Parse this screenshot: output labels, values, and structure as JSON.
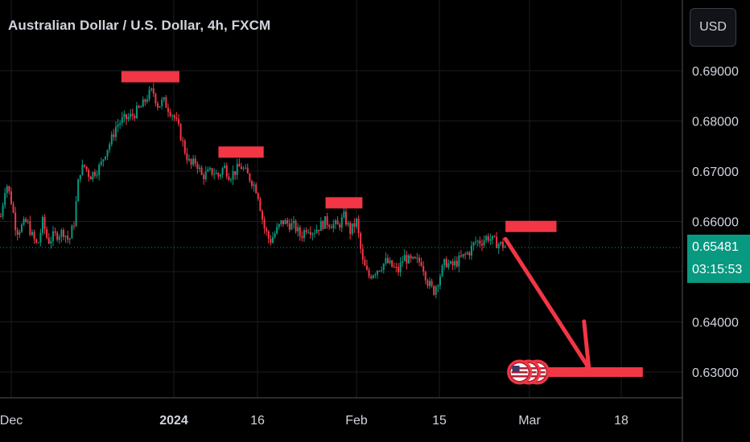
{
  "header": {
    "title": "Australian Dollar / U.S. Dollar, 4h, FXCM"
  },
  "currency_button": {
    "label": "USD"
  },
  "current_price": {
    "value": "0.65481",
    "countdown": "03:15:53",
    "color": "#089981"
  },
  "colors": {
    "background": "#000000",
    "up": "#089981",
    "down": "#f23645",
    "annotation": "#f23645",
    "text": "#d1d4dc",
    "grid": "#1a1c22"
  },
  "chart_data": {
    "type": "candlestick",
    "title": "Australian Dollar / U.S. Dollar, 4h, FXCM",
    "y_ticks": [
      "0.69000",
      "0.68000",
      "0.67000",
      "0.66000",
      "0.64000",
      "0.63000"
    ],
    "x_ticks": [
      "Dec",
      "2024",
      "16",
      "Feb",
      "15",
      "Mar",
      "18"
    ],
    "ylim": [
      0.6255,
      0.7
    ],
    "x_dates": [
      "2023-12-01",
      "2024-01-01",
      "2024-01-16",
      "2024-02-01",
      "2024-02-15",
      "2024-03-01",
      "2024-03-18"
    ],
    "close_path": [
      [
        "2023-11-29",
        0.661
      ],
      [
        "2023-11-30",
        0.668
      ],
      [
        "2023-12-01",
        0.664
      ],
      [
        "2023-12-02",
        0.658
      ],
      [
        "2023-12-04",
        0.66
      ],
      [
        "2023-12-05",
        0.657
      ],
      [
        "2023-12-06",
        0.655
      ],
      [
        "2023-12-07",
        0.66
      ],
      [
        "2023-12-08",
        0.656
      ],
      [
        "2023-12-09",
        0.657
      ],
      [
        "2023-12-11",
        0.658
      ],
      [
        "2023-12-12",
        0.656
      ],
      [
        "2023-12-13",
        0.66
      ],
      [
        "2023-12-14",
        0.67
      ],
      [
        "2023-12-15",
        0.671
      ],
      [
        "2023-12-16",
        0.669
      ],
      [
        "2023-12-18",
        0.671
      ],
      [
        "2023-12-19",
        0.674
      ],
      [
        "2023-12-20",
        0.676
      ],
      [
        "2023-12-21",
        0.679
      ],
      [
        "2023-12-22",
        0.68
      ],
      [
        "2023-12-24",
        0.681
      ],
      [
        "2023-12-26",
        0.683
      ],
      [
        "2023-12-27",
        0.685
      ],
      [
        "2023-12-28",
        0.686
      ],
      [
        "2023-12-29",
        0.683
      ],
      [
        "2023-12-30",
        0.684
      ],
      [
        "2024-01-01",
        0.681
      ],
      [
        "2024-01-02",
        0.678
      ],
      [
        "2024-01-03",
        0.674
      ],
      [
        "2024-01-04",
        0.671
      ],
      [
        "2024-01-05",
        0.672
      ],
      [
        "2024-01-06",
        0.669
      ],
      [
        "2024-01-08",
        0.67
      ],
      [
        "2024-01-09",
        0.669
      ],
      [
        "2024-01-10",
        0.671
      ],
      [
        "2024-01-11",
        0.669
      ],
      [
        "2024-01-12",
        0.67
      ],
      [
        "2024-01-13",
        0.671
      ],
      [
        "2024-01-15",
        0.668
      ],
      [
        "2024-01-16",
        0.666
      ],
      [
        "2024-01-17",
        0.659
      ],
      [
        "2024-01-18",
        0.656
      ],
      [
        "2024-01-19",
        0.658
      ],
      [
        "2024-01-20",
        0.66
      ],
      [
        "2024-01-22",
        0.659
      ],
      [
        "2024-01-23",
        0.657
      ],
      [
        "2024-01-24",
        0.659
      ],
      [
        "2024-01-25",
        0.658
      ],
      [
        "2024-01-26",
        0.659
      ],
      [
        "2024-01-27",
        0.66
      ],
      [
        "2024-01-29",
        0.659
      ],
      [
        "2024-01-30",
        0.661
      ],
      [
        "2024-01-31",
        0.658
      ],
      [
        "2024-02-01",
        0.66
      ],
      [
        "2024-02-02",
        0.652
      ],
      [
        "2024-02-03",
        0.649
      ],
      [
        "2024-02-05",
        0.651
      ],
      [
        "2024-02-06",
        0.652
      ],
      [
        "2024-02-07",
        0.651
      ],
      [
        "2024-02-08",
        0.65
      ],
      [
        "2024-02-09",
        0.653
      ],
      [
        "2024-02-10",
        0.652
      ],
      [
        "2024-02-12",
        0.652
      ],
      [
        "2024-02-13",
        0.648
      ],
      [
        "2024-02-14",
        0.646
      ],
      [
        "2024-02-15",
        0.649
      ],
      [
        "2024-02-16",
        0.652
      ],
      [
        "2024-02-17",
        0.651
      ],
      [
        "2024-02-19",
        0.653
      ],
      [
        "2024-02-20",
        0.654
      ],
      [
        "2024-02-21",
        0.656
      ],
      [
        "2024-02-22",
        0.656
      ],
      [
        "2024-02-23",
        0.657
      ],
      [
        "2024-02-24",
        0.656
      ],
      [
        "2024-02-26",
        0.655
      ]
    ],
    "current_price": 0.65481,
    "annotations": {
      "resistance_lines": [
        {
          "x_start": "2023-12-22",
          "x_end": "2024-01-02",
          "y": 0.6888
        },
        {
          "x_start": "2024-01-09",
          "x_end": "2024-01-17",
          "y": 0.6738
        },
        {
          "x_start": "2024-01-27",
          "x_end": "2024-02-02",
          "y": 0.6637
        },
        {
          "x_start": "2024-02-26",
          "x_end": "2024-03-06",
          "y": 0.659
        }
      ],
      "arrow": {
        "from": [
          "2024-02-26",
          0.6565
        ],
        "to": [
          "2024-03-12",
          0.6308
        ]
      },
      "target_line": {
        "x_start": "2024-03-02",
        "x_end": "2024-03-22",
        "y": 0.63
      },
      "event_icons": {
        "icon": "us-flag-icon",
        "count": 3,
        "x": "2024-02-27",
        "y": 0.63
      }
    }
  }
}
